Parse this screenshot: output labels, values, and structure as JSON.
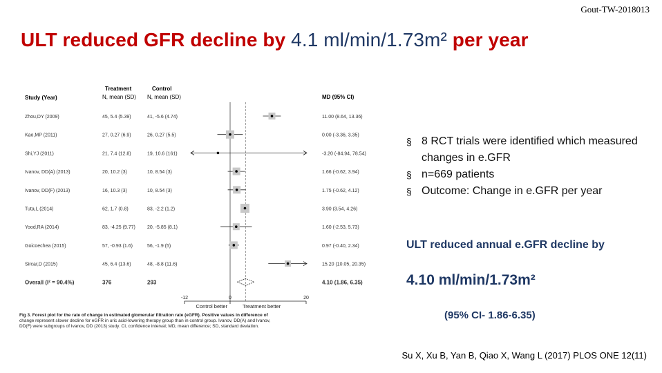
{
  "corner_label": "Gout-TW-2018013",
  "title": {
    "prefix": "ULT reduced GFR decline by ",
    "highlight": "4.1 ml/min/1.73m² ",
    "suffix": "per year"
  },
  "bullets": [
    "8 RCT trials were identified which measured changes in e.GFR",
    "n=669 patients",
    "Outcome: Change in e.GFR per year"
  ],
  "summary": {
    "line1": "ULT reduced annual e.GFR decline by",
    "line2": "4.10 ml/min/1.73m²",
    "line3": "(95% CI- 1.86-6.35)"
  },
  "citation": "Su X, Xu B, Yan B, Qiao X, Wang L (2017) PLOS ONE 12(11)",
  "chart_data": {
    "type": "forest",
    "headers": {
      "study": "Study (Year)",
      "treatment_top": "Treatment",
      "treatment": "N, mean (SD)",
      "control_top": "Control",
      "control": "N, mean (SD)",
      "md": "MD (95% CI)"
    },
    "xlim": [
      -12,
      20
    ],
    "ticks": [
      -12,
      0,
      20
    ],
    "tick_labels": [
      "-12",
      "0",
      "20"
    ],
    "left_label": "Control better",
    "right_label": "Treatment better",
    "studies": [
      {
        "study": "Zhou,DY (2009)",
        "treatment": "45, 5.4 (5.39)",
        "control": "41, -5.6 (4.74)",
        "md_text": "11.00 (8.64, 13.36)",
        "md": 11.0,
        "lo": 8.64,
        "hi": 13.36,
        "weight": 10
      },
      {
        "study": "Kao,MP (2011)",
        "treatment": "27, 0.27 (6.9)",
        "control": "26, 0.27 (5.5)",
        "md_text": "0.00 (-3.36, 3.35)",
        "md": 0.0,
        "lo": -3.36,
        "hi": 3.35,
        "weight": 12
      },
      {
        "study": "Shi,YJ (2011)",
        "treatment": "21, 7.4 (12.8)",
        "control": "19, 10.6 (161)",
        "md_text": "-3.20 (-84.94, 78.54)",
        "md": -3.2,
        "lo": -84.94,
        "hi": 78.54,
        "weight": 1
      },
      {
        "study": "Ivanov, DD(A) (2013)",
        "treatment": "20, 10.2 (3)",
        "control": "10, 8.54 (3)",
        "md_text": "1.66 (-0.62, 3.94)",
        "md": 1.66,
        "lo": -0.62,
        "hi": 3.94,
        "weight": 11
      },
      {
        "study": "Ivanov, DD(F) (2013)",
        "treatment": "16, 10.3 (3)",
        "control": "10, 8.54 (3)",
        "md_text": "1.75 (-0.62, 4.12)",
        "md": 1.75,
        "lo": -0.62,
        "hi": 4.12,
        "weight": 11
      },
      {
        "study": "Tuta,L (2014)",
        "treatment": "62, 1.7 (0.8)",
        "control": "83, -2.2 (1.2)",
        "md_text": "3.90 (3.54, 4.26)",
        "md": 3.9,
        "lo": 3.54,
        "hi": 4.26,
        "weight": 13
      },
      {
        "study": "Yood,RA (2014)",
        "treatment": "83, -4.25 (9.77)",
        "control": "20, -5.85 (8.1)",
        "md_text": "1.60 (-2.53, 5.73)",
        "md": 1.6,
        "lo": -2.53,
        "hi": 5.73,
        "weight": 10
      },
      {
        "study": "Goicoechea (2015)",
        "treatment": "57, -0.93 (1.6)",
        "control": "56, -1.9 (5)",
        "md_text": "0.97 (-0.40, 2.34)",
        "md": 0.97,
        "lo": -0.4,
        "hi": 2.34,
        "weight": 11
      },
      {
        "study": "Sircar,D (2015)",
        "treatment": "45, 6.4 (13.6)",
        "control": "48, -8.8 (11.6)",
        "md_text": "15.20 (10.05, 20.35)",
        "md": 15.2,
        "lo": 10.05,
        "hi": 20.35,
        "weight": 9
      }
    ],
    "overall": {
      "study": "Overall (I² = 90.4%)",
      "treatment": "376",
      "control": "293",
      "md_text": "4.10 (1.86, 6.35)",
      "md": 4.1,
      "lo": 1.86,
      "hi": 6.35
    },
    "caption": "Fig 3. Forest plot for the rate of change in estimated glomerular filtration rate (eGFR). Positive values in difference of change represent slower decline for eGFR in uric acid-lowering therapy group than in control group. Ivanov, DD(A) and Ivanov, DD(F) were subgroups of Ivanov, DD (2013) study. CI, confidence interval; MD, mean difference; SD, standard deviation."
  },
  "colors": {
    "title_red": "#c00000",
    "title_blue": "#1f3864",
    "box": "#c8c8c8"
  }
}
